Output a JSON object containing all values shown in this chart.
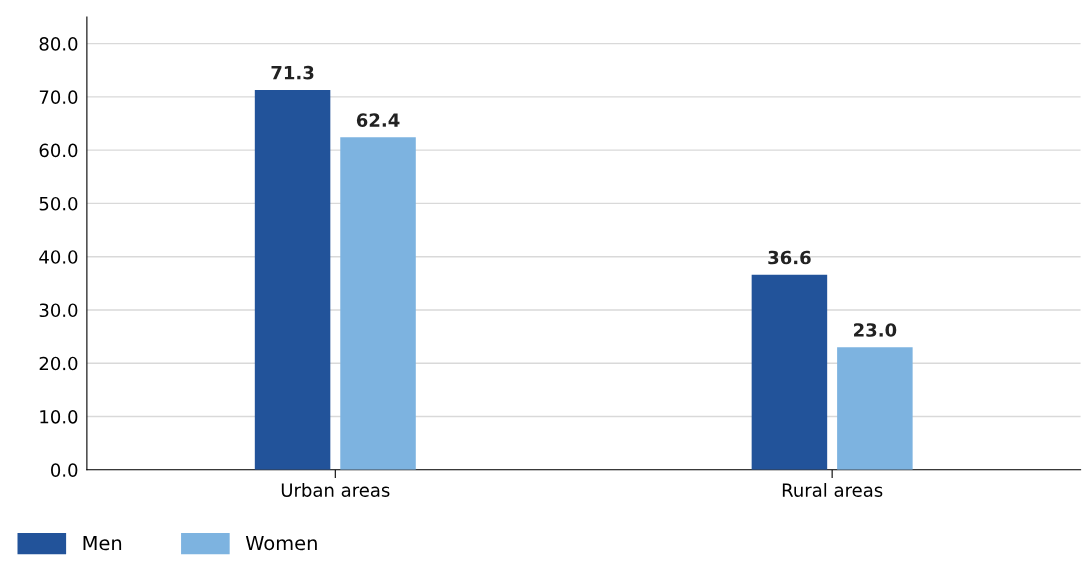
{
  "chart_data": {
    "type": "bar",
    "categories": [
      "Urban areas",
      "Rural areas"
    ],
    "series": [
      {
        "name": "Men",
        "color": "#22539a",
        "values": [
          71.3,
          36.6
        ],
        "value_labels": [
          "71.3",
          "36.6"
        ]
      },
      {
        "name": "Women",
        "color": "#7db3e0",
        "values": [
          62.4,
          23.0
        ],
        "value_labels": [
          "62.4",
          "23.0"
        ]
      }
    ],
    "ylim": [
      0,
      85
    ],
    "yticks": [
      {
        "value": 0,
        "label": "0.0"
      },
      {
        "value": 10,
        "label": "10.0"
      },
      {
        "value": 20,
        "label": "20.0"
      },
      {
        "value": 30,
        "label": "30.0"
      },
      {
        "value": 40,
        "label": "40.0"
      },
      {
        "value": 50,
        "label": "50.0"
      },
      {
        "value": 60,
        "label": "60.0"
      },
      {
        "value": 70,
        "label": "70.0"
      },
      {
        "value": 80,
        "label": "80.0"
      }
    ],
    "grid": "y",
    "legend": "bottom left"
  }
}
